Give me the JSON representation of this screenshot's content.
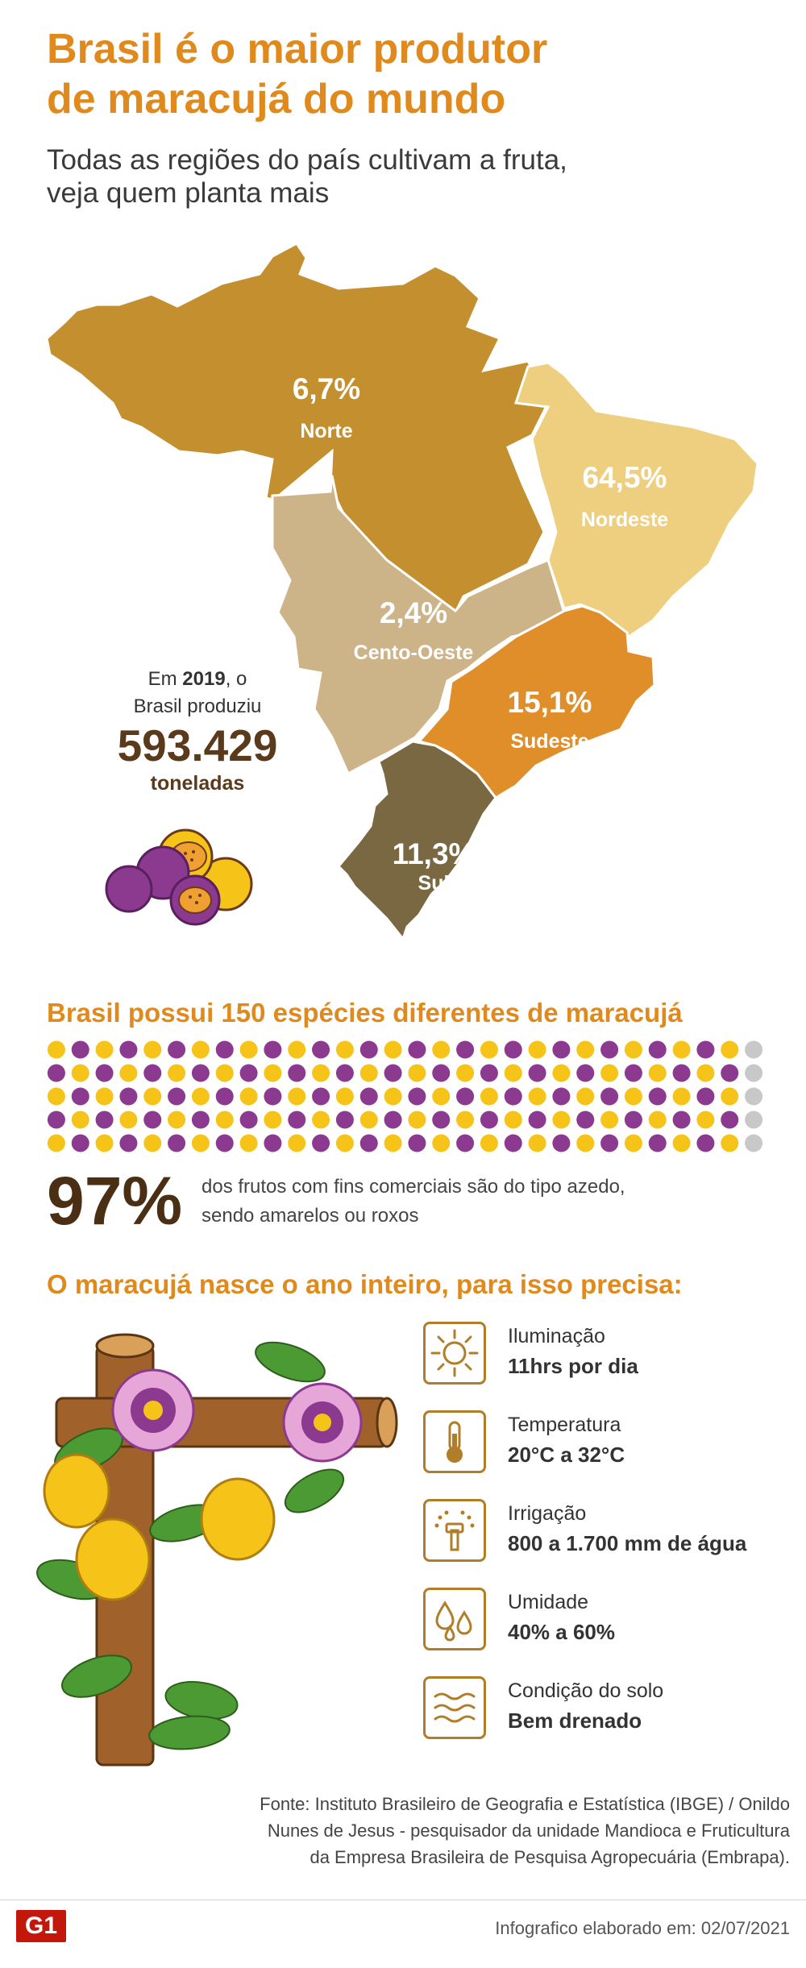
{
  "header": {
    "title_line1": "Brasil é o maior produtor",
    "title_line2": "de maracujá do mundo",
    "subtitle_line1": "Todas as regiões do país cultivam a fruta,",
    "subtitle_line2": "veja quem planta mais"
  },
  "regions": [
    {
      "name": "Norte",
      "percent": "6,7%",
      "color": "#c4902f"
    },
    {
      "name": "Nordeste",
      "percent": "64,5%",
      "color": "#eecf7f"
    },
    {
      "name": "Cento-Oeste",
      "percent": "2,4%",
      "color": "#cdb488"
    },
    {
      "name": "Sudeste",
      "percent": "15,1%",
      "color": "#df8e2a"
    },
    {
      "name": "Sul",
      "percent": "11,3%",
      "color": "#7a6842"
    }
  ],
  "production": {
    "line1_prefix": "Em ",
    "year": "2019",
    "line1_suffix": ", o",
    "line2": "Brasil produziu",
    "amount": "593.429",
    "unit": "toneladas"
  },
  "species": {
    "title": "Brasil possui 150 espécies diferentes de maracujá",
    "total": 150,
    "colored": 145,
    "colors": {
      "purple": "#8b3a8f",
      "yellow": "#f6c419",
      "gray": "#c8c8c8"
    },
    "percent": "97%",
    "desc_line1": "dos frutos com fins comerciais são do tipo azedo,",
    "desc_line2": "sendo amarelos ou roxos"
  },
  "needs": {
    "title": "O maracujá nasce o ano inteiro, para isso precisa:",
    "items": [
      {
        "icon": "sun-icon",
        "label": "Iluminação",
        "value": "11hrs por dia"
      },
      {
        "icon": "thermometer-icon",
        "label": "Temperatura",
        "value": "20°C a 32°C"
      },
      {
        "icon": "sprinkler-icon",
        "label": "Irrigação",
        "value": "800 a 1.700 mm de água"
      },
      {
        "icon": "droplets-icon",
        "label": "Umidade",
        "value": "40% a 60%"
      },
      {
        "icon": "soil-waves-icon",
        "label": "Condição do solo",
        "value": "Bem drenado"
      }
    ]
  },
  "source": {
    "line1": "Fonte: Instituto Brasileiro de Geografia e Estatística (IBGE) / Onildo",
    "line2": "Nunes de Jesus - pesquisador da unidade Mandioca e Fruticultura",
    "line3": "da Empresa Brasileira de Pesquisa Agropecuária (Embrapa)."
  },
  "footer": {
    "logo": "G1",
    "credit": "Infografico elaborado em: 02/07/2021"
  }
}
